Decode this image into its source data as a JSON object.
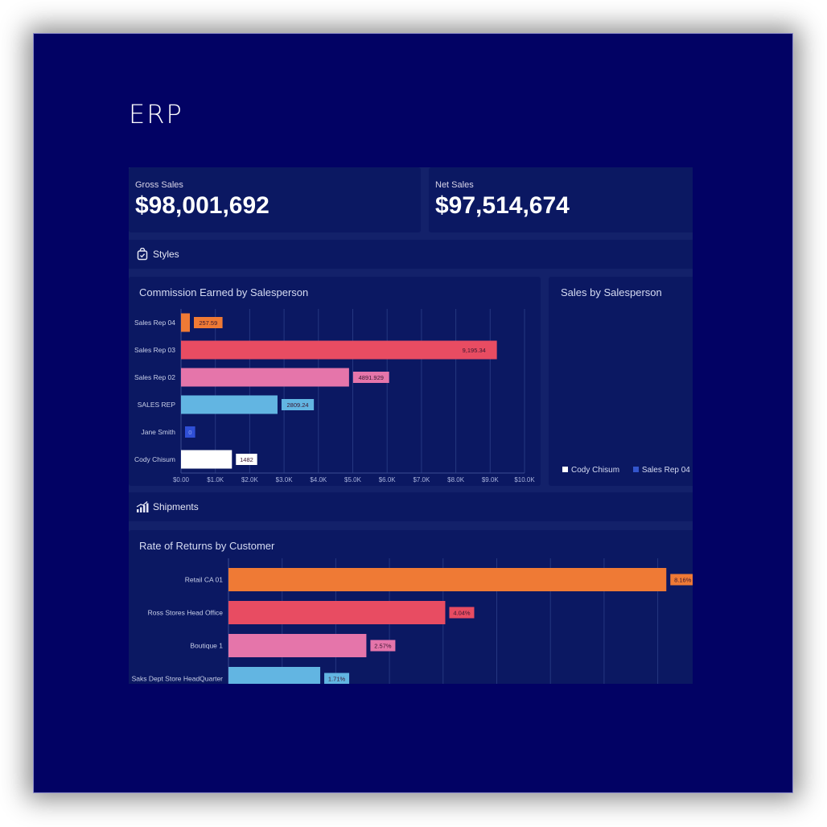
{
  "app": {
    "title": "ERP"
  },
  "kpis": [
    {
      "label": "Gross Sales",
      "value": "$98,001,692"
    },
    {
      "label": "Net Sales",
      "value": "$97,514,674"
    }
  ],
  "sections": [
    {
      "label": "Styles",
      "icon": "shopping-bag-check-icon"
    },
    {
      "label": "Shipments",
      "icon": "bar-chart-growth-icon"
    }
  ],
  "sales_by_salesperson": {
    "title": "Sales by Salesperson",
    "legend": [
      {
        "label": "Cody Chisum",
        "color": "#ffffff"
      },
      {
        "label": "Sales Rep 04",
        "color": "#3355cc"
      }
    ]
  },
  "chart_data": [
    {
      "type": "bar",
      "orientation": "horizontal",
      "title": "Commission Earned by Salesperson",
      "categories": [
        "Sales Rep 04",
        "Sales Rep 03",
        "Sales Rep 02",
        "SALES REP",
        "Jane Smith",
        "Cody Chisum"
      ],
      "values": [
        257.59,
        9195.34,
        4891.929,
        2809.24,
        0,
        1482
      ],
      "labels": [
        "257.59",
        "9,195.34",
        "4891.929",
        "2809.24",
        "0",
        "1482"
      ],
      "colors": [
        "#ef7a35",
        "#e84c62",
        "#e575aa",
        "#62b5e2",
        "#2f4fd6",
        "#ffffff"
      ],
      "xlim": [
        0,
        10000
      ],
      "xticks": [
        "$0.00",
        "$1.0K",
        "$2.0K",
        "$3.0K",
        "$4.0K",
        "$5.0K",
        "$6.0K",
        "$7.0K",
        "$8.0K",
        "$9.0K",
        "$10.0K"
      ],
      "grid": true
    },
    {
      "type": "bar",
      "orientation": "horizontal",
      "title": "Rate of Returns by Customer",
      "categories": [
        "Retail CA 01",
        "Ross Stores Head Office",
        "Boutique 1",
        "Saks Dept Store HeadQuarter"
      ],
      "values": [
        8.16,
        4.04,
        2.57,
        1.71
      ],
      "labels": [
        "8.16%",
        "4.04%",
        "2.57%",
        "1.71%"
      ],
      "colors": [
        "#ef7a35",
        "#e84c62",
        "#e575aa",
        "#62b5e2"
      ],
      "xlim": [
        0,
        8.5
      ],
      "grid": true
    }
  ]
}
